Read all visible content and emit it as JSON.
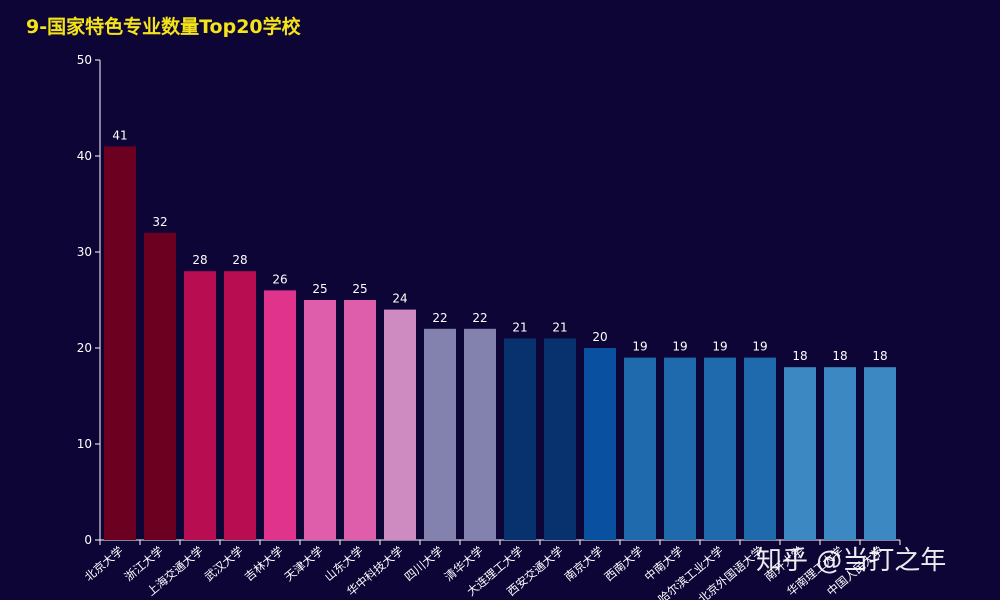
{
  "watermark": "知乎 @当打之年",
  "chart_data": {
    "type": "bar",
    "title": "9-国家特色专业数量Top20学校",
    "xlabel": "",
    "ylabel": "",
    "ylim": [
      0,
      50
    ],
    "yticks": [
      0,
      10,
      20,
      30,
      40,
      50
    ],
    "grid": false,
    "categories": [
      "北京大学",
      "浙江大学",
      "上海交通大学",
      "武汉大学",
      "吉林大学",
      "天津大学",
      "山东大学",
      "华中科技大学",
      "四川大学",
      "清华大学",
      "大连理工大学",
      "西安交通大学",
      "南京大学",
      "西南大学",
      "中南大学",
      "哈尔滨工业大学",
      "北京外国语大学",
      "南开大学",
      "华南理工大学",
      "中国人民大学"
    ],
    "values": [
      41,
      32,
      28,
      28,
      26,
      25,
      25,
      24,
      22,
      22,
      21,
      21,
      20,
      19,
      19,
      19,
      19,
      18,
      18,
      18
    ],
    "colors": [
      "#6c0020",
      "#6c0020",
      "#b80d51",
      "#b80d51",
      "#e0348c",
      "#de5eac",
      "#de5eac",
      "#cd8bc1",
      "#8381ae",
      "#8381ae",
      "#08326d",
      "#08326d",
      "#0950a0",
      "#1f6aad",
      "#1f6aad",
      "#1f6aad",
      "#1f6aad",
      "#3b88c2",
      "#3b88c2",
      "#3b88c2"
    ]
  }
}
